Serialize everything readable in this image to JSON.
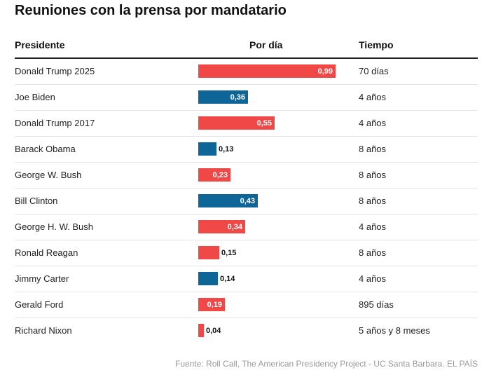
{
  "title": "Reuniones con la prensa por mandatario",
  "columns": {
    "president": "Presidente",
    "per_day": "Por día",
    "time": "Tiempo"
  },
  "colors": {
    "red": "#f04747",
    "blue": "#0e6698"
  },
  "chart_data": {
    "type": "bar",
    "orientation": "horizontal",
    "title": "Reuniones con la prensa por mandatario",
    "categories": [
      "Donald Trump 2025",
      "Joe Biden",
      "Donald Trump 2017",
      "Barack Obama",
      "George W. Bush",
      "Bill Clinton",
      "George H. W. Bush",
      "Ronald Reagan",
      "Jimmy Carter",
      "Gerald Ford",
      "Richard Nixon"
    ],
    "values": [
      0.99,
      0.36,
      0.55,
      0.13,
      0.23,
      0.43,
      0.34,
      0.15,
      0.14,
      0.19,
      0.04
    ],
    "value_labels": [
      "0,99",
      "0,36",
      "0,55",
      "0,13",
      "0,23",
      "0,43",
      "0,34",
      "0,15",
      "0,14",
      "0,19",
      "0,04"
    ],
    "party": [
      "red",
      "blue",
      "red",
      "blue",
      "red",
      "blue",
      "red",
      "red",
      "blue",
      "red",
      "red"
    ],
    "time_in_office": [
      "70 días",
      "4 años",
      "4 años",
      "8 años",
      "8 años",
      "8 años",
      "4 años",
      "8 años",
      "4 años",
      "895 días",
      "5 años y 8 meses"
    ],
    "xlim": [
      0,
      0.99
    ],
    "grid": false
  },
  "source": "Fuente: Roll Call, The American Presidency Project - UC Santa Barbara. EL PAÍS"
}
